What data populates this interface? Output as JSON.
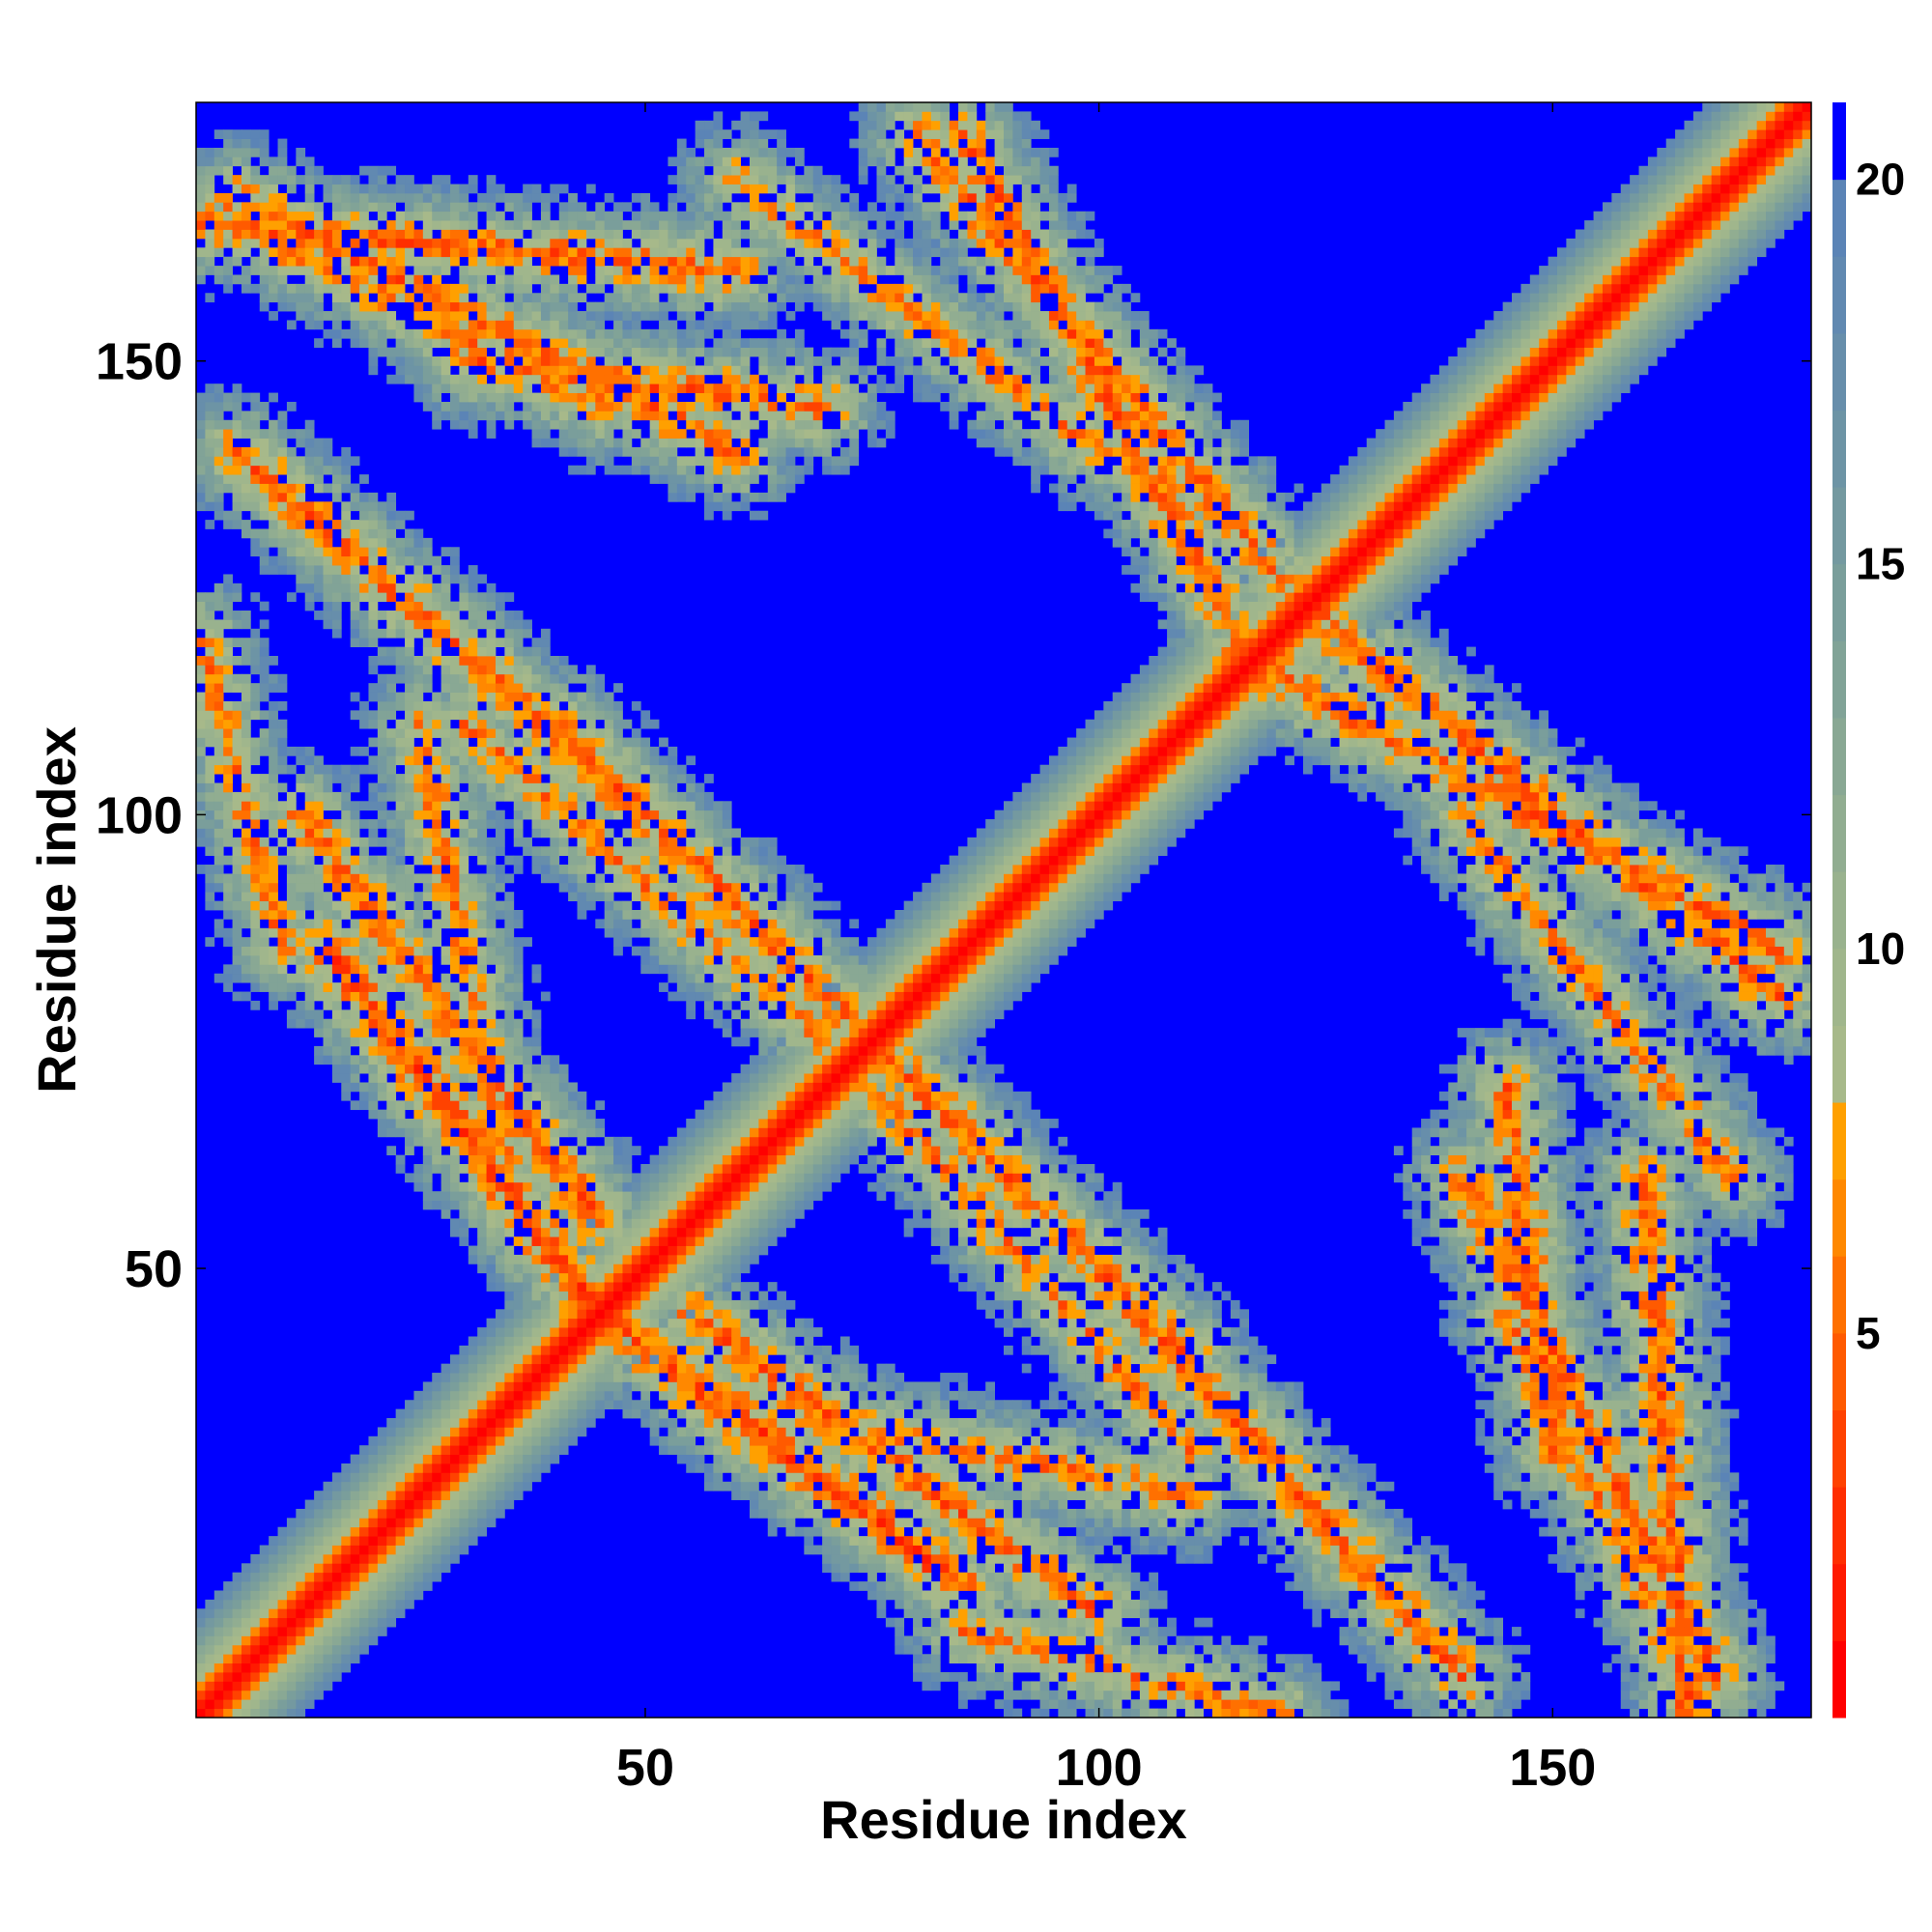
{
  "chart_data": {
    "type": "heatmap",
    "title": "",
    "xlabel": "Residue index",
    "ylabel": "Residue index",
    "n_residues": 178,
    "xlim": [
      1,
      178
    ],
    "ylim": [
      1,
      178
    ],
    "x_ticks": [
      50,
      100,
      150
    ],
    "y_ticks": [
      50,
      100,
      150
    ],
    "colorbar": {
      "label": "",
      "range": [
        0,
        21
      ],
      "ticks": [
        5,
        10,
        15,
        20
      ],
      "above_max_color": "#0000ff",
      "levels": [
        {
          "from": 0,
          "to": 1,
          "color": "#ff0000"
        },
        {
          "from": 1,
          "to": 2,
          "color": "#ff1a00"
        },
        {
          "from": 2,
          "to": 3,
          "color": "#ff2e00"
        },
        {
          "from": 3,
          "to": 4,
          "color": "#ff4200"
        },
        {
          "from": 4,
          "to": 5,
          "color": "#ff5a00"
        },
        {
          "from": 5,
          "to": 6,
          "color": "#ff7000"
        },
        {
          "from": 6,
          "to": 7,
          "color": "#ff8800"
        },
        {
          "from": 7,
          "to": 8,
          "color": "#ffa000"
        },
        {
          "from": 8,
          "to": 9,
          "color": "#a7b98a"
        },
        {
          "from": 9,
          "to": 10,
          "color": "#a0b68c"
        },
        {
          "from": 10,
          "to": 11,
          "color": "#99b28e"
        },
        {
          "from": 11,
          "to": 12,
          "color": "#91ad91"
        },
        {
          "from": 12,
          "to": 13,
          "color": "#89a894"
        },
        {
          "from": 13,
          "to": 14,
          "color": "#81a397"
        },
        {
          "from": 14,
          "to": 15,
          "color": "#7a9e9b"
        },
        {
          "from": 15,
          "to": 16,
          "color": "#7499a0"
        },
        {
          "from": 16,
          "to": 17,
          "color": "#6d94a5"
        },
        {
          "from": 17,
          "to": 18,
          "color": "#678eab"
        },
        {
          "from": 18,
          "to": 19,
          "color": "#6189b1"
        },
        {
          "from": 19,
          "to": 20,
          "color": "#5b84b6"
        },
        {
          "from": 20,
          "to": 21,
          "color": "#0000ff"
        }
      ]
    },
    "contact_bands": [
      {
        "from": [
          1,
          120
        ],
        "to": [
          10,
          85
        ],
        "min_distance": 6
      },
      {
        "from": [
          5,
          140
        ],
        "to": [
          50,
          100
        ],
        "min_distance": 5
      },
      {
        "from": [
          15,
          85
        ],
        "to": [
          45,
          45
        ],
        "min_distance": 4
      },
      {
        "from": [
          40,
          110
        ],
        "to": [
          80,
          70
        ],
        "min_distance": 5
      },
      {
        "from": [
          55,
          45
        ],
        "to": [
          100,
          12
        ],
        "min_distance": 5
      },
      {
        "from": [
          75,
          70
        ],
        "to": [
          110,
          30
        ],
        "min_distance": 6
      },
      {
        "from": [
          85,
          175
        ],
        "to": [
          118,
          115
        ],
        "min_distance": 5
      },
      {
        "from": [
          1,
          165
        ],
        "to": [
          60,
          160
        ],
        "min_distance": 5
      },
      {
        "from": [
          30,
          150
        ],
        "to": [
          70,
          145
        ],
        "min_distance": 5
      },
      {
        "from": [
          120,
          125
        ],
        "to": [
          175,
          80
        ],
        "min_distance": 5
      },
      {
        "from": [
          140,
          100
        ],
        "to": [
          170,
          60
        ],
        "min_distance": 6
      },
      {
        "from": [
          140,
          60
        ],
        "to": [
          168,
          5
        ],
        "min_distance": 5
      },
      {
        "from": [
          145,
          45
        ],
        "to": [
          165,
          5
        ],
        "min_distance": 6
      },
      {
        "from": [
          60,
          35
        ],
        "to": [
          110,
          25
        ],
        "min_distance": 6
      }
    ]
  }
}
